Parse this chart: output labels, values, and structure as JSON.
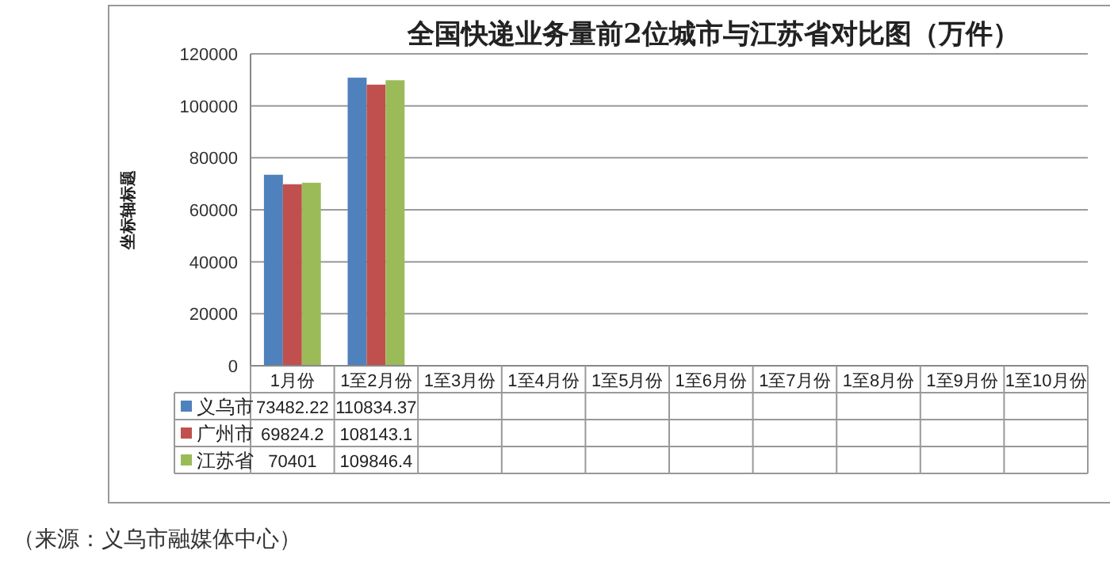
{
  "chart_data": {
    "type": "bar",
    "title": "全国快递业务量前2位城市与江苏省对比图（万件）",
    "ylabel": "坐标轴标题",
    "categories": [
      "1月份",
      "1至2月份",
      "1至3月份",
      "1至4月份",
      "1至5月份",
      "1至6月份",
      "1至7月份",
      "1至8月份",
      "1至9月份",
      "1至10月份"
    ],
    "series": [
      {
        "name": "义乌市",
        "color": "#4f81bd",
        "values": [
          73482.22,
          110834.37,
          null,
          null,
          null,
          null,
          null,
          null,
          null,
          null
        ]
      },
      {
        "name": "广州市",
        "color": "#c0504d",
        "values": [
          69824.2,
          108143.1,
          null,
          null,
          null,
          null,
          null,
          null,
          null,
          null
        ]
      },
      {
        "name": "江苏省",
        "color": "#9bbb59",
        "values": [
          70401,
          109846.4,
          null,
          null,
          null,
          null,
          null,
          null,
          null,
          null
        ]
      }
    ],
    "ylim": [
      0,
      120000
    ],
    "yticks": [
      0,
      20000,
      40000,
      60000,
      80000,
      100000,
      120000
    ],
    "grid": "y",
    "legend": "bottom",
    "data_labels": true,
    "annotations": [
      "（来源：义乌市融媒体中心）"
    ]
  }
}
